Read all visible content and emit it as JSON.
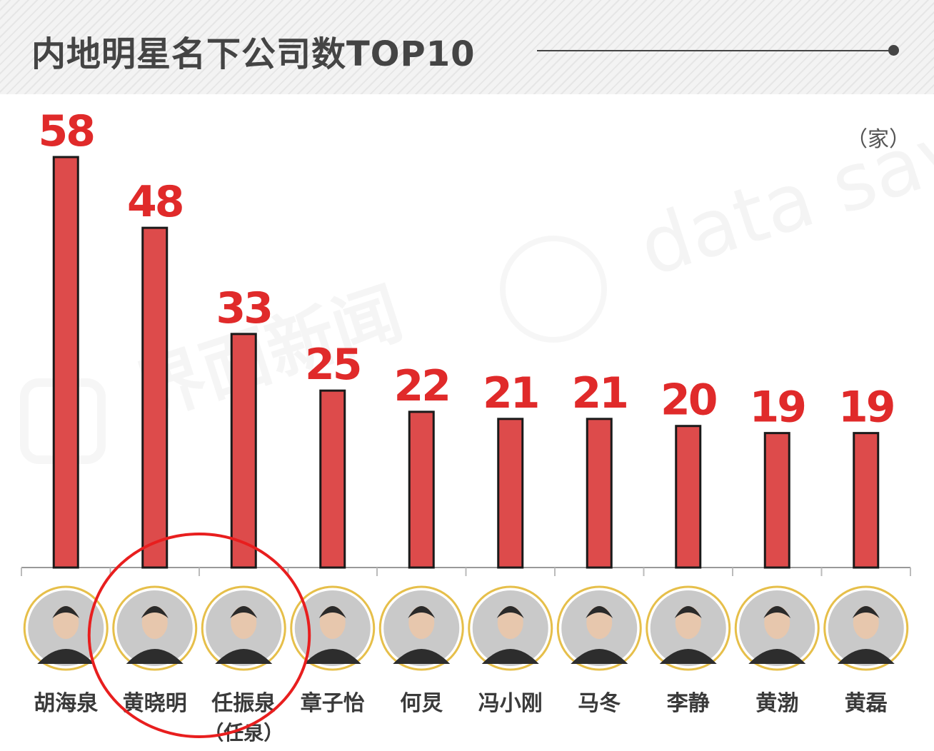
{
  "header": {
    "title": "内地明星名下公司数TOP10"
  },
  "unit_label": "（家）",
  "watermark": {
    "text_en": "data says",
    "text_cn": "界面新闻"
  },
  "chart_data": {
    "type": "bar",
    "title": "内地明星名下公司数TOP10",
    "xlabel": "",
    "ylabel": "",
    "unit": "（家）",
    "ylim": [
      0,
      58
    ],
    "grid": false,
    "categories": [
      "胡海泉",
      "黄晓明",
      "任振泉",
      "章子怡",
      "何炅",
      "冯小刚",
      "马冬",
      "李静",
      "黄渤",
      "黄磊"
    ],
    "category_notes": [
      "",
      "",
      "（任泉）",
      "",
      "",
      "",
      "",
      "",
      "",
      ""
    ],
    "values": [
      58,
      48,
      33,
      25,
      22,
      21,
      21,
      20,
      19,
      19
    ],
    "highlighted": [
      "黄晓明",
      "任振泉"
    ],
    "colors": {
      "bar": "#dd4b4b",
      "value_label": "#e02a2a",
      "highlight": "#e81e1e",
      "avatar_ring": "#e6bf4a"
    }
  }
}
